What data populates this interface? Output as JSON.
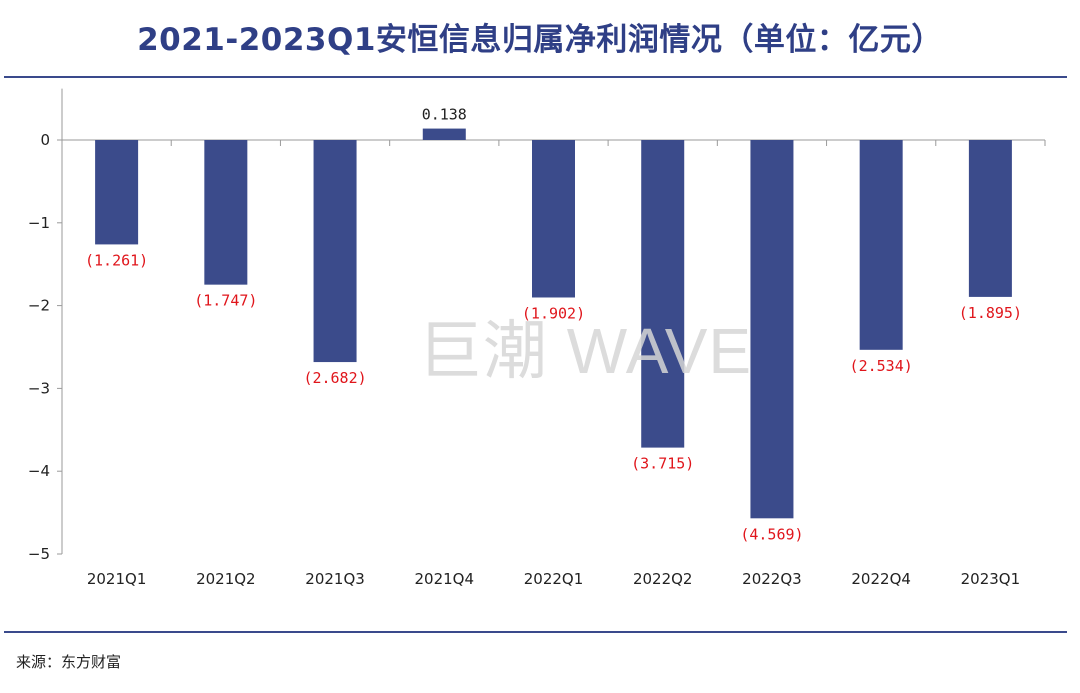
{
  "title": "2021-2023Q1安恒信息归属净利润情况（单位：亿元）",
  "source": "来源：东方财富",
  "watermark": "巨潮 WAVE",
  "colors": {
    "bar": "#3b4b8b",
    "negative_label": "#e0151b",
    "positive_label": "#222222",
    "axis": "#9a9a9a",
    "title": "#2f3f86"
  },
  "chart_data": {
    "type": "bar",
    "categories": [
      "2021Q1",
      "2021Q2",
      "2021Q3",
      "2021Q4",
      "2022Q1",
      "2022Q2",
      "2022Q3",
      "2022Q4",
      "2023Q1"
    ],
    "values": [
      -1.261,
      -1.747,
      -2.682,
      0.138,
      -1.902,
      -3.715,
      -4.569,
      -2.534,
      -1.895
    ],
    "data_labels": [
      "(1.261)",
      "(1.747)",
      "(2.682)",
      "0.138",
      "(1.902)",
      "(3.715)",
      "(4.569)",
      "(2.534)",
      "(1.895)"
    ],
    "yticks": [
      0,
      -1,
      -2,
      -3,
      -4,
      -5
    ],
    "ytick_labels": [
      "0",
      "−1",
      "−2",
      "−3",
      "−4",
      "−5"
    ],
    "ylim": [
      -5,
      0.5
    ],
    "xlabel": "",
    "ylabel": "",
    "grid": false,
    "legend": "none"
  }
}
